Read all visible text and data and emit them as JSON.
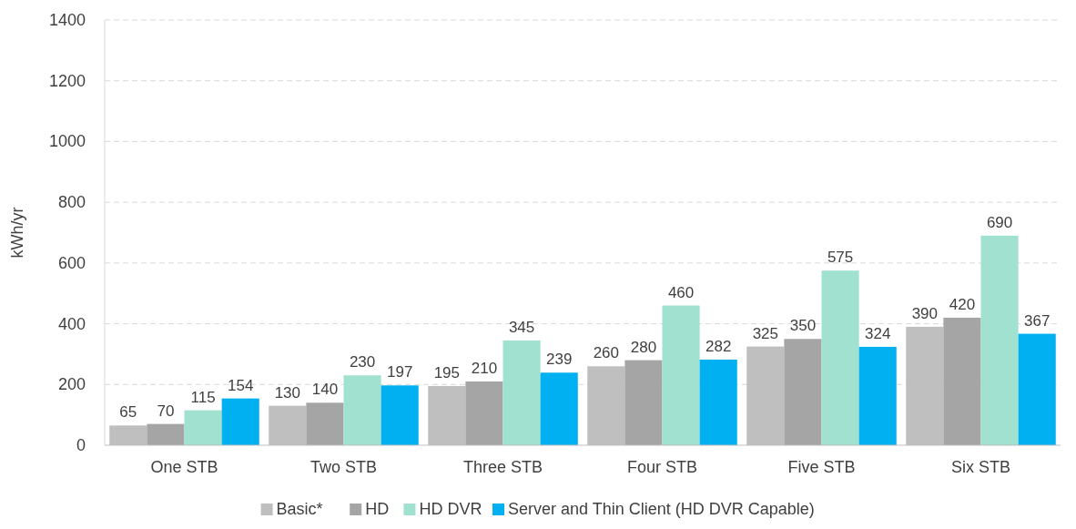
{
  "chart_data": {
    "type": "bar",
    "ylabel": "kWh/yr",
    "categories": [
      "One STB",
      "Two STB",
      "Three STB",
      "Four STB",
      "Five STB",
      "Six STB"
    ],
    "series": [
      {
        "name": "Basic*",
        "color": "#bfbfbf",
        "values": [
          65,
          130,
          195,
          260,
          325,
          390
        ]
      },
      {
        "name": "HD",
        "color": "#a5a5a5",
        "values": [
          70,
          140,
          210,
          280,
          350,
          420
        ]
      },
      {
        "name": "HD DVR",
        "color": "#a0e1cf",
        "values": [
          115,
          230,
          345,
          460,
          575,
          690
        ]
      },
      {
        "name": "Server and Thin Client (HD DVR Capable)",
        "color": "#00b0f0",
        "values": [
          154,
          197,
          239,
          282,
          324,
          367
        ]
      }
    ],
    "ylim": [
      0,
      1400
    ],
    "yticks": [
      0,
      200,
      400,
      600,
      800,
      1000,
      1200,
      1400
    ],
    "grid": "y",
    "legend": "bottom",
    "data_labels": true
  }
}
